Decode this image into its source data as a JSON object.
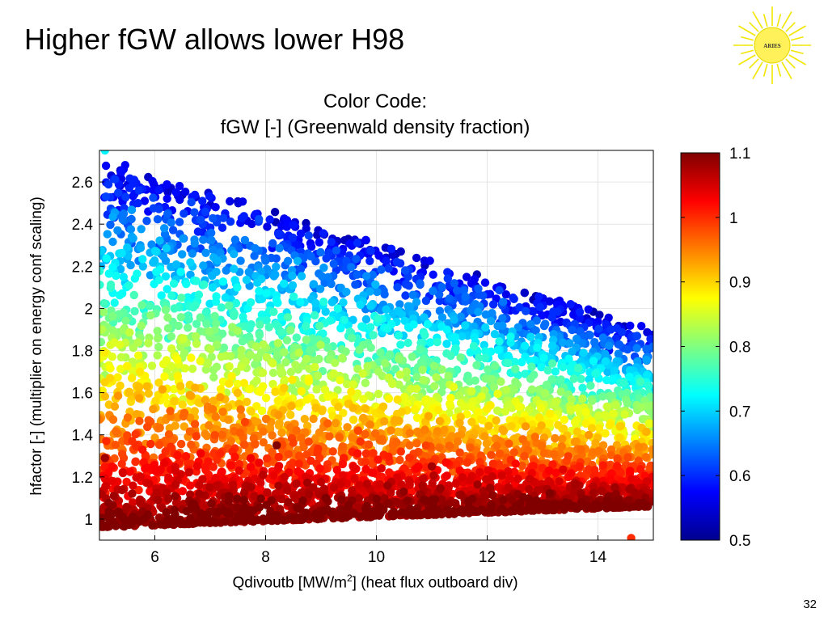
{
  "slide": {
    "title": "Higher fGW allows lower H98",
    "logo_text": "ARIES",
    "page_number": "32"
  },
  "chart_data": {
    "type": "scatter",
    "title_line1": "Color Code:",
    "title_line2": "fGW [-] (Greenwald density fraction)",
    "xlabel_main": "Qdivoutb [MW/m",
    "xlabel_sup": "2",
    "xlabel_tail": "] (heat flux outboard div)",
    "ylabel": "hfactor [-] (multiplier on energy conf scaling)",
    "xlim": [
      5,
      15
    ],
    "ylim": [
      0.9,
      2.75
    ],
    "xticks": [
      "6",
      "8",
      "10",
      "12",
      "14"
    ],
    "yticks": [
      "1",
      "1.2",
      "1.4",
      "1.6",
      "1.8",
      "2",
      "2.2",
      "2.4",
      "2.6"
    ],
    "colorbar": {
      "label": "fGW",
      "range": [
        0.5,
        1.1
      ],
      "ticks": [
        "0.5",
        "0.6",
        "0.7",
        "0.8",
        "0.9",
        "1",
        "1.1"
      ],
      "colormap": "jet"
    },
    "point_count": 5000,
    "trend_description": "Upper envelope of hfactor declines from ~2.7 at Q=5 to ~1.9 at Q=15; lower bound ~0.95. Points with high fGW (~1.05-1.1, dark red) concentrate at lower hfactor (1.0-1.6), low fGW (~0.55-0.7, blue/cyan) at the upper edge.",
    "series": [
      {
        "sample_points": [
          {
            "x": 5.1,
            "y": 2.75,
            "c": 0.72
          },
          {
            "x": 5.4,
            "y": 2.65,
            "c": 0.58
          },
          {
            "x": 5.1,
            "y": 1.29,
            "c": 1.08
          },
          {
            "x": 14.6,
            "y": 0.91,
            "c": 1.0
          },
          {
            "x": 14.2,
            "y": 1.8,
            "c": 0.58
          },
          {
            "x": 8.2,
            "y": 1.35,
            "c": 1.1
          },
          {
            "x": 11.0,
            "y": 1.25,
            "c": 1.08
          }
        ]
      }
    ]
  }
}
